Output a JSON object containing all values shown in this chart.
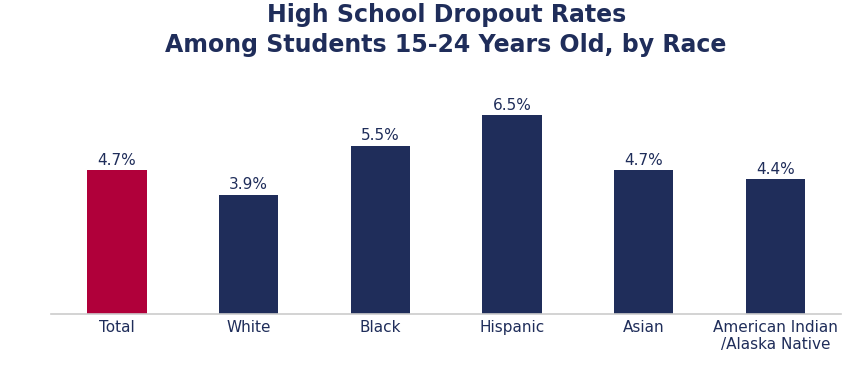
{
  "title_line1": "High School Dropout Rates",
  "title_line2": "Among Students 15-24 Years Old, by Race",
  "categories": [
    "Total",
    "White",
    "Black",
    "Hispanic",
    "Asian",
    "American Indian\n/Alaska Native"
  ],
  "values": [
    4.7,
    3.9,
    5.5,
    6.5,
    4.7,
    4.4
  ],
  "labels": [
    "4.7%",
    "3.9%",
    "5.5%",
    "6.5%",
    "4.7%",
    "4.4%"
  ],
  "bar_colors": [
    "#B0003A",
    "#1F2D5A",
    "#1F2D5A",
    "#1F2D5A",
    "#1F2D5A",
    "#1F2D5A"
  ],
  "background_color": "#ffffff",
  "ylim": [
    0,
    8.0
  ],
  "title_fontsize": 17,
  "label_fontsize": 11,
  "tick_fontsize": 11,
  "title_color": "#1F2D5A",
  "label_color": "#1F2D5A",
  "bar_width": 0.45
}
